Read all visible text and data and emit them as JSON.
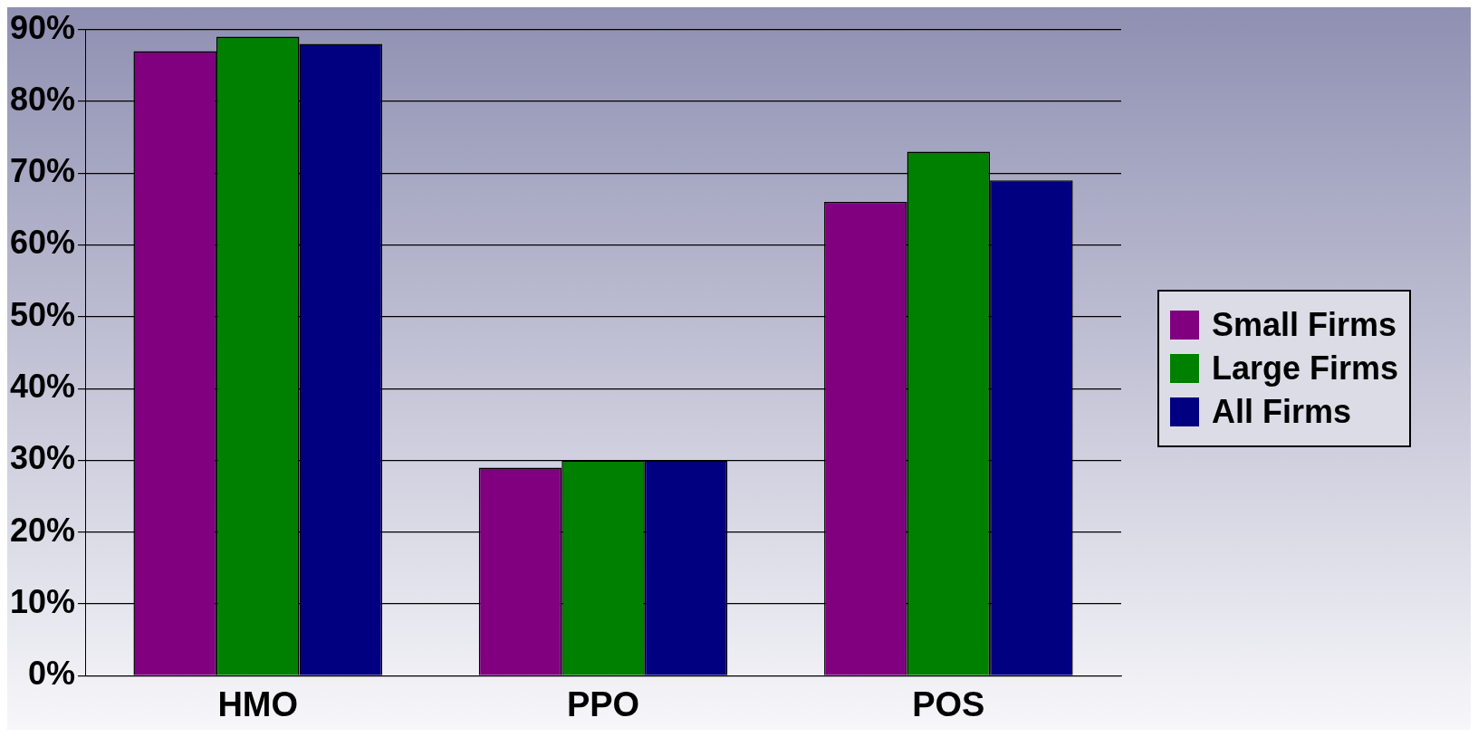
{
  "chart_data": {
    "type": "bar",
    "categories": [
      "HMO",
      "PPO",
      "POS"
    ],
    "series": [
      {
        "name": "Small Firms",
        "color": "#800080",
        "values": [
          87,
          29,
          66
        ]
      },
      {
        "name": "Large Firms",
        "color": "#008000",
        "values": [
          89,
          30,
          73
        ]
      },
      {
        "name": "All Firms",
        "color": "#000080",
        "values": [
          88,
          30,
          69
        ]
      }
    ],
    "ylim": [
      0,
      90
    ],
    "yticks": [
      {
        "value": 0,
        "label": "0%"
      },
      {
        "value": 10,
        "label": "10%"
      },
      {
        "value": 20,
        "label": "20%"
      },
      {
        "value": 30,
        "label": "30%"
      },
      {
        "value": 40,
        "label": "40%"
      },
      {
        "value": 50,
        "label": "50%"
      },
      {
        "value": 60,
        "label": "60%"
      },
      {
        "value": 70,
        "label": "70%"
      },
      {
        "value": 80,
        "label": "80%"
      },
      {
        "value": 90,
        "label": "90%"
      }
    ],
    "grid": "y",
    "legend": "right"
  }
}
